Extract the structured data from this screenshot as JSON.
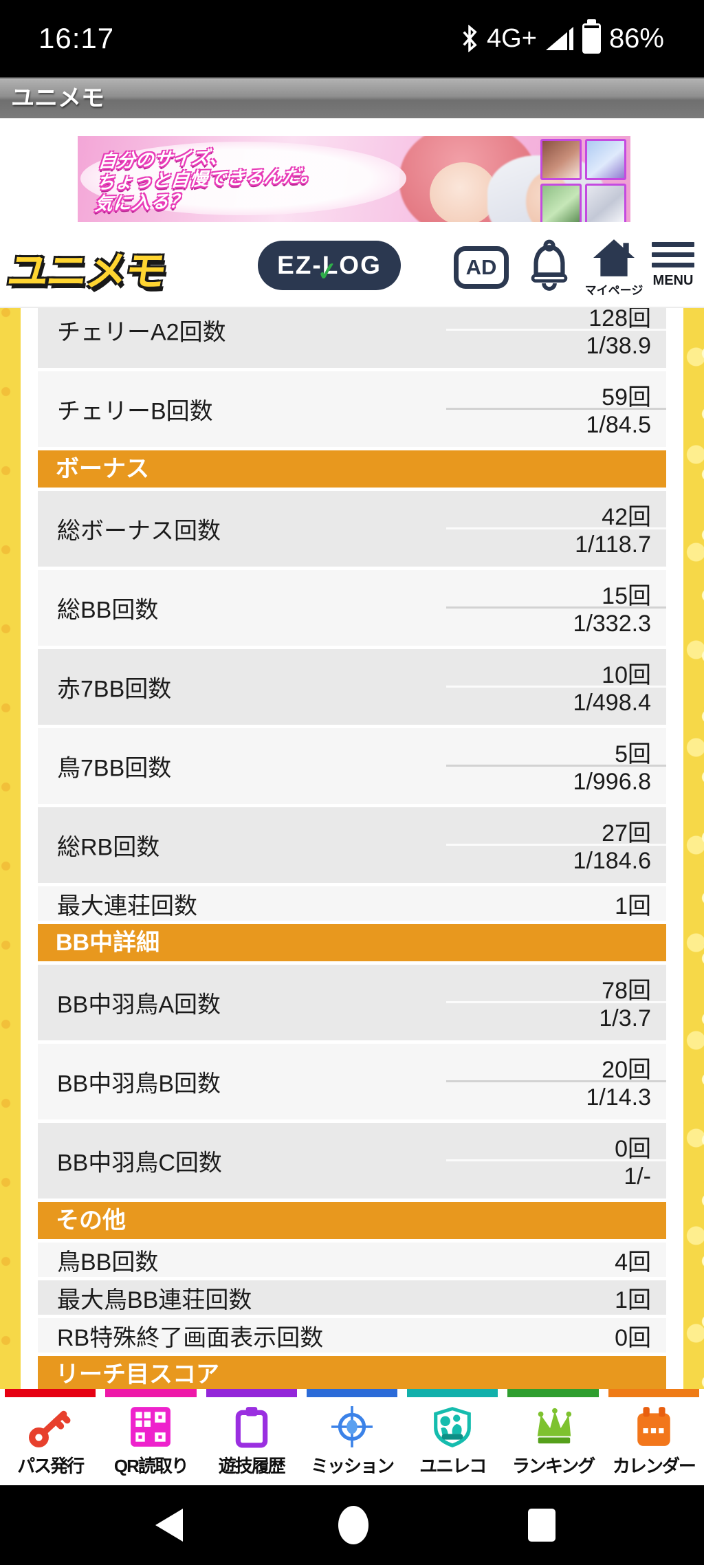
{
  "status_bar": {
    "time": "16:17",
    "network": "4G+",
    "battery": "86%"
  },
  "title_bar": {
    "title": "ユニメモ"
  },
  "ad_banner": {
    "line1": "自分のサイズ、",
    "line2": "ちょっと自慢できるんだ。",
    "line3": "気に入る？"
  },
  "header": {
    "logo": "ユニメモ",
    "ezlog_label": "EZ-LOG",
    "ezlog_check": "✓",
    "ad_badge": "AD",
    "mypage_label": "マイページ",
    "menu_label": "MENU"
  },
  "table": {
    "accent_color": "#E8981E",
    "rows": [
      {
        "type": "stat2",
        "label": "チェリーA2回数",
        "count": "128回",
        "ratio": "1/38.9",
        "shade": "dark"
      },
      {
        "type": "stat2",
        "label": "チェリーB回数",
        "count": "59回",
        "ratio": "1/84.5",
        "shade": "light"
      },
      {
        "type": "header",
        "label": "ボーナス"
      },
      {
        "type": "stat2",
        "label": "総ボーナス回数",
        "count": "42回",
        "ratio": "1/118.7",
        "shade": "dark"
      },
      {
        "type": "stat2",
        "label": "総BB回数",
        "count": "15回",
        "ratio": "1/332.3",
        "shade": "light"
      },
      {
        "type": "stat2",
        "label": "赤7BB回数",
        "count": "10回",
        "ratio": "1/498.4",
        "shade": "dark"
      },
      {
        "type": "stat2",
        "label": "鳥7BB回数",
        "count": "5回",
        "ratio": "1/996.8",
        "shade": "light"
      },
      {
        "type": "stat2",
        "label": "総RB回数",
        "count": "27回",
        "ratio": "1/184.6",
        "shade": "dark"
      },
      {
        "type": "stat1",
        "label": "最大連荘回数",
        "count": "1回",
        "shade": "light"
      },
      {
        "type": "header",
        "label": "BB中詳細"
      },
      {
        "type": "stat2",
        "label": "BB中羽鳥A回数",
        "count": "78回",
        "ratio": "1/3.7",
        "shade": "dark"
      },
      {
        "type": "stat2",
        "label": "BB中羽鳥B回数",
        "count": "20回",
        "ratio": "1/14.3",
        "shade": "light"
      },
      {
        "type": "stat2",
        "label": "BB中羽鳥C回数",
        "count": "0回",
        "ratio": "1/-",
        "shade": "dark"
      },
      {
        "type": "header",
        "label": "その他"
      },
      {
        "type": "stat1",
        "label": "鳥BB回数",
        "count": "4回",
        "shade": "light"
      },
      {
        "type": "stat1",
        "label": "最大鳥BB連荘回数",
        "count": "1回",
        "shade": "dark"
      },
      {
        "type": "stat1",
        "label": "RB特殊終了画面表示回数",
        "count": "0回",
        "shade": "light"
      },
      {
        "type": "header",
        "label": "リーチ目スコア"
      }
    ]
  },
  "bottom_nav": {
    "items": [
      {
        "label": "パス発行",
        "icon": "key-icon",
        "color": "#e60012"
      },
      {
        "label": "QR読取り",
        "icon": "qr-icon",
        "color": "#ee18a8"
      },
      {
        "label": "遊技履歴",
        "icon": "clipboard-icon",
        "color": "#9326d9"
      },
      {
        "label": "ミッション",
        "icon": "target-icon",
        "color": "#2b6bd8"
      },
      {
        "label": "ユニレコ",
        "icon": "shield-icon",
        "color": "#12b0ab"
      },
      {
        "label": "ランキング",
        "icon": "crown-icon",
        "color": "#2f9e2f"
      },
      {
        "label": "カレンダー",
        "icon": "calendar-icon",
        "color": "#ef7b16"
      }
    ]
  }
}
